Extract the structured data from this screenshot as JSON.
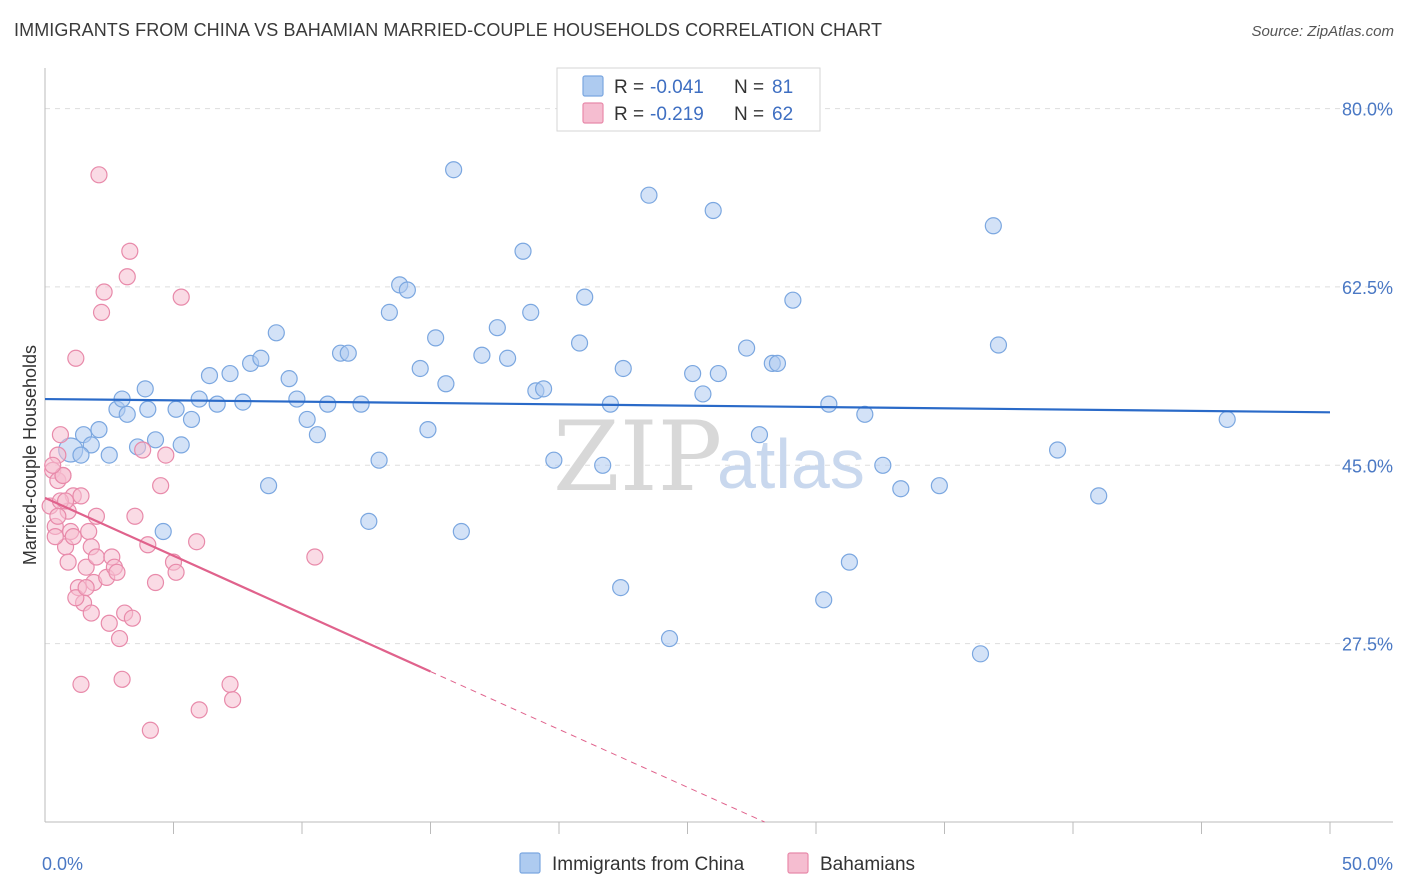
{
  "title": "IMMIGRANTS FROM CHINA VS BAHAMIAN MARRIED-COUPLE HOUSEHOLDS CORRELATION CHART",
  "source": "Source: ZipAtlas.com",
  "colors": {
    "blue": "#7ba7e0",
    "blue_fill": "#aecbf0",
    "blue_line": "#2a6ac8",
    "pink": "#e88aaa",
    "pink_fill": "#f5bdd0",
    "pink_line": "#e0628c",
    "tick": "#4a78c4"
  },
  "chart_data": {
    "type": "scatter",
    "xlabel": "",
    "ylabel": "Married-couple Households",
    "xlim": [
      0,
      50
    ],
    "ylim": [
      10,
      83
    ],
    "x_tick_labels": [
      {
        "value": 0,
        "label": "0.0%"
      },
      {
        "value": 50,
        "label": "50.0%"
      }
    ],
    "x_minor_ticks": [
      5,
      10,
      15,
      20,
      25,
      30,
      35,
      40,
      45,
      50
    ],
    "y_tick_labels": [
      {
        "value": 27.5,
        "label": "27.5%"
      },
      {
        "value": 45.0,
        "label": "45.0%"
      },
      {
        "value": 62.5,
        "label": "62.5%"
      },
      {
        "value": 80.0,
        "label": "80.0%"
      }
    ],
    "legend": {
      "rows": [
        {
          "r_label": "R =",
          "r_value": "-0.041",
          "n_label": "N =",
          "n_value": "81"
        },
        {
          "r_label": "R =",
          "r_value": "-0.219",
          "n_label": "N =",
          "n_value": "62"
        }
      ]
    },
    "series": [
      {
        "name": "Immigrants from China",
        "trend": {
          "x": [
            0,
            50
          ],
          "y": [
            51.5,
            50.2
          ],
          "solid_to": 50
        },
        "points": [
          [
            1.0,
            46.5
          ],
          [
            1.5,
            48
          ],
          [
            1.8,
            47
          ],
          [
            1.4,
            46
          ],
          [
            2.1,
            48.5
          ],
          [
            2.5,
            46
          ],
          [
            2.8,
            50.5
          ],
          [
            3.2,
            50
          ],
          [
            3.0,
            51.5
          ],
          [
            3.6,
            46.8
          ],
          [
            3.9,
            52.5
          ],
          [
            4.0,
            50.5
          ],
          [
            4.3,
            47.5
          ],
          [
            4.6,
            38.5
          ],
          [
            5.1,
            50.5
          ],
          [
            5.3,
            47
          ],
          [
            5.7,
            49.5
          ],
          [
            6.0,
            51.5
          ],
          [
            6.4,
            53.8
          ],
          [
            6.7,
            51
          ],
          [
            7.2,
            54
          ],
          [
            7.7,
            51.2
          ],
          [
            8.0,
            55
          ],
          [
            8.4,
            55.5
          ],
          [
            8.7,
            43
          ],
          [
            9.0,
            58
          ],
          [
            9.5,
            53.5
          ],
          [
            9.8,
            51.5
          ],
          [
            10.2,
            49.5
          ],
          [
            10.6,
            48
          ],
          [
            11.0,
            51
          ],
          [
            11.5,
            56
          ],
          [
            11.8,
            56
          ],
          [
            12.3,
            51
          ],
          [
            12.6,
            39.5
          ],
          [
            13.0,
            45.5
          ],
          [
            13.4,
            60
          ],
          [
            13.8,
            62.7
          ],
          [
            14.1,
            62.2
          ],
          [
            14.6,
            54.5
          ],
          [
            14.9,
            48.5
          ],
          [
            15.2,
            57.5
          ],
          [
            15.6,
            53
          ],
          [
            15.9,
            74
          ],
          [
            16.2,
            38.5
          ],
          [
            17.0,
            55.8
          ],
          [
            17.6,
            58.5
          ],
          [
            18.0,
            55.5
          ],
          [
            18.6,
            66
          ],
          [
            18.9,
            60
          ],
          [
            19.1,
            52.3
          ],
          [
            19.4,
            52.5
          ],
          [
            19.8,
            45.5
          ],
          [
            20.8,
            57
          ],
          [
            21.0,
            61.5
          ],
          [
            21.7,
            45
          ],
          [
            22.0,
            51
          ],
          [
            22.5,
            54.5
          ],
          [
            22.4,
            33
          ],
          [
            23.5,
            71.5
          ],
          [
            24.3,
            28
          ],
          [
            25.2,
            54
          ],
          [
            25.6,
            52
          ],
          [
            26.0,
            70
          ],
          [
            26.2,
            54
          ],
          [
            27.3,
            56.5
          ],
          [
            27.8,
            48
          ],
          [
            28.3,
            55
          ],
          [
            28.5,
            55
          ],
          [
            29.1,
            61.2
          ],
          [
            30.3,
            31.8
          ],
          [
            30.5,
            51
          ],
          [
            31.3,
            35.5
          ],
          [
            31.9,
            50
          ],
          [
            32.6,
            45
          ],
          [
            33.3,
            42.7
          ],
          [
            34.8,
            43
          ],
          [
            36.4,
            26.5
          ],
          [
            36.9,
            68.5
          ],
          [
            37.1,
            56.8
          ],
          [
            39.4,
            46.5
          ],
          [
            41.0,
            42
          ],
          [
            46.0,
            49.5
          ]
        ]
      },
      {
        "name": "Bahamians",
        "trend": {
          "x": [
            0,
            28
          ],
          "y": [
            41.8,
            10.0
          ],
          "solid_to": 15
        },
        "points": [
          [
            0.2,
            41
          ],
          [
            0.3,
            44.5
          ],
          [
            0.4,
            39
          ],
          [
            0.5,
            43.5
          ],
          [
            0.5,
            46
          ],
          [
            0.6,
            48
          ],
          [
            0.7,
            44
          ],
          [
            0.8,
            37
          ],
          [
            0.9,
            40.5
          ],
          [
            1.0,
            38.5
          ],
          [
            1.1,
            42
          ],
          [
            1.2,
            55.5
          ],
          [
            1.3,
            33
          ],
          [
            1.4,
            42
          ],
          [
            1.5,
            31.5
          ],
          [
            1.6,
            35
          ],
          [
            1.7,
            38.5
          ],
          [
            1.8,
            37
          ],
          [
            1.9,
            33.5
          ],
          [
            2.0,
            36
          ],
          [
            2.1,
            73.5
          ],
          [
            2.2,
            60
          ],
          [
            2.3,
            62
          ],
          [
            2.4,
            34
          ],
          [
            2.5,
            29.5
          ],
          [
            2.6,
            36
          ],
          [
            2.7,
            35
          ],
          [
            2.8,
            34.5
          ],
          [
            2.9,
            28
          ],
          [
            3.0,
            24
          ],
          [
            3.1,
            30.5
          ],
          [
            3.2,
            63.5
          ],
          [
            3.3,
            66
          ],
          [
            3.4,
            30
          ],
          [
            3.5,
            40
          ],
          [
            3.8,
            46.5
          ],
          [
            4.0,
            37.2
          ],
          [
            4.1,
            19
          ],
          [
            4.3,
            33.5
          ],
          [
            4.5,
            43
          ],
          [
            4.7,
            46
          ],
          [
            5.0,
            35.5
          ],
          [
            5.1,
            34.5
          ],
          [
            5.3,
            61.5
          ],
          [
            5.9,
            37.5
          ],
          [
            6.0,
            21
          ],
          [
            7.2,
            23.5
          ],
          [
            7.3,
            22
          ],
          [
            10.5,
            36
          ],
          [
            1.4,
            23.5
          ],
          [
            0.6,
            41.5
          ],
          [
            0.9,
            35.5
          ],
          [
            1.2,
            32
          ],
          [
            1.6,
            33
          ],
          [
            1.8,
            30.5
          ],
          [
            2.0,
            40
          ],
          [
            0.4,
            38
          ],
          [
            0.7,
            44
          ],
          [
            1.1,
            38
          ],
          [
            0.3,
            45
          ],
          [
            0.5,
            40
          ],
          [
            0.8,
            41.5
          ]
        ]
      }
    ],
    "watermark": {
      "zip": "ZIP",
      "atlas": "atlas"
    }
  }
}
